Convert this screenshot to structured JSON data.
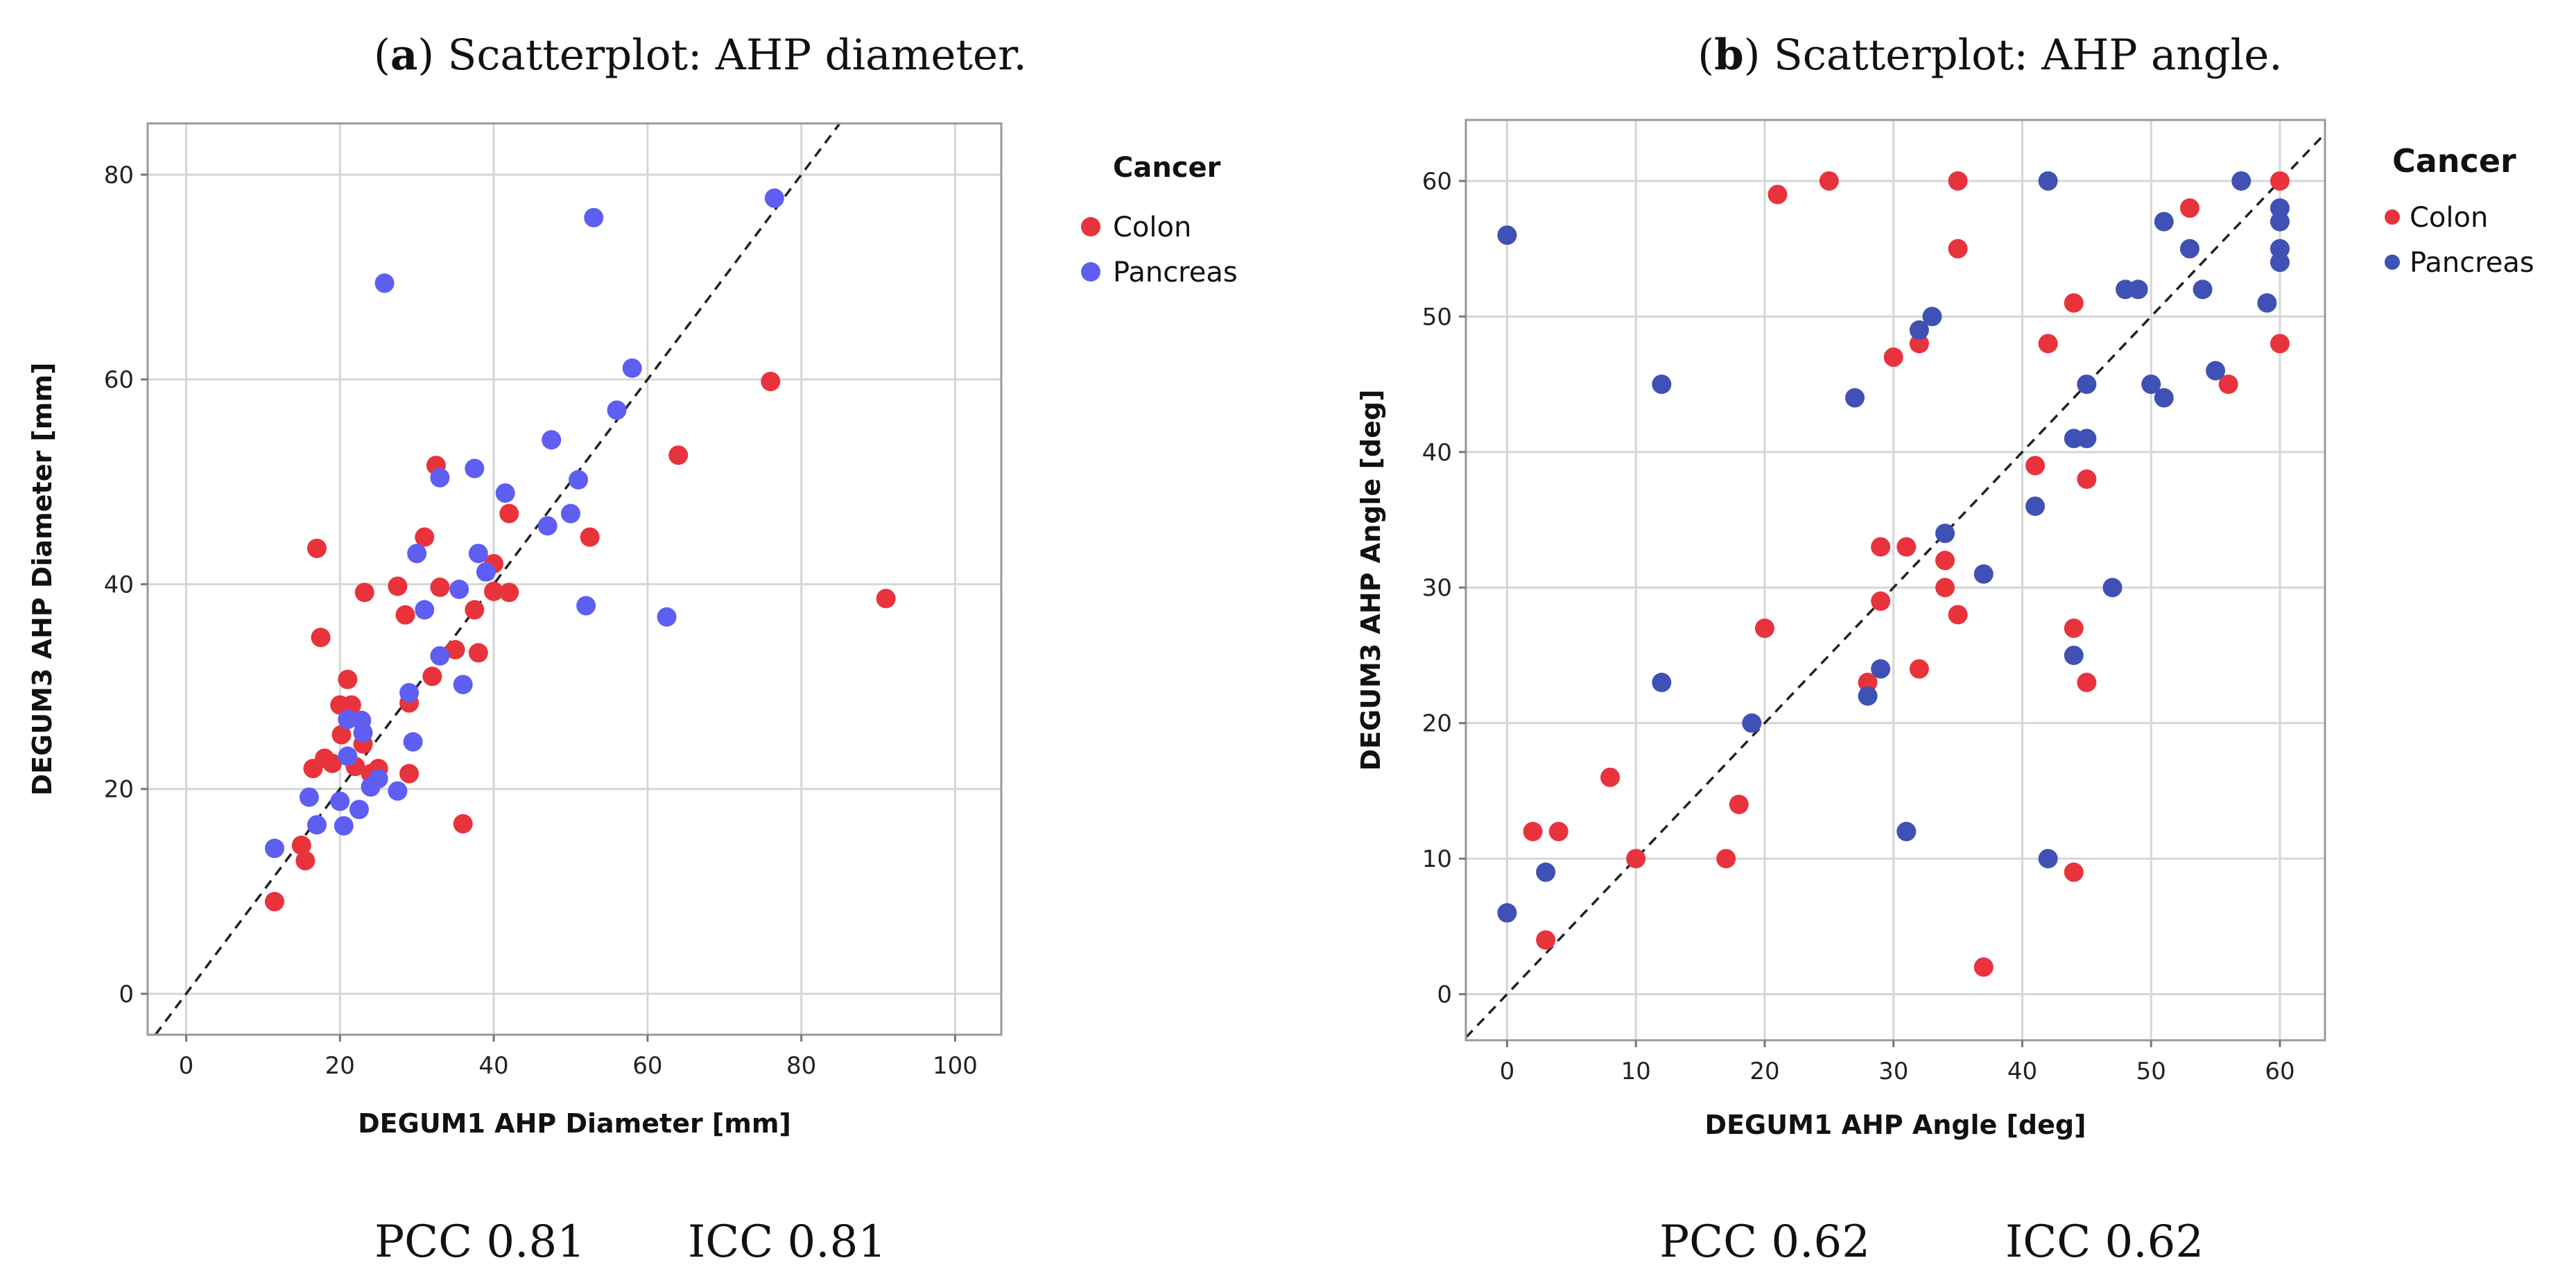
{
  "colors": {
    "colon": "#e8333c",
    "pancreas_a": "#5e5ef2",
    "pancreas_b": "#3f51b5"
  },
  "chart_data": [
    {
      "type": "scatter",
      "caption": {
        "letter": "a",
        "text": ") Scatterplot: AHP diameter.",
        "open": "("
      },
      "stats": {
        "pcc": "PCC 0.81",
        "icc": "ICC 0.81"
      },
      "xlabel": "DEGUM1 AHP Diameter [mm]",
      "ylabel": "DEGUM3 AHP Diameter [mm]",
      "xlim": [
        -5,
        106
      ],
      "ylim": [
        -4,
        85
      ],
      "xticks": [
        0,
        20,
        40,
        60,
        80,
        100
      ],
      "yticks": [
        0,
        20,
        40,
        60,
        80
      ],
      "legend": {
        "title": "Cancer",
        "entries": [
          "Colon",
          "Pancreas"
        ],
        "position": "right"
      },
      "reference_line": "y = x",
      "series": [
        {
          "name": "Colon",
          "points": [
            [
              11.5,
              9
            ],
            [
              15,
              14.5
            ],
            [
              15.5,
              13
            ],
            [
              16.5,
              22
            ],
            [
              17,
              43.5
            ],
            [
              17.5,
              34.8
            ],
            [
              18,
              23
            ],
            [
              19,
              22.5
            ],
            [
              20,
              28.2
            ],
            [
              20.2,
              25.3
            ],
            [
              21,
              30.7
            ],
            [
              21.5,
              28.2
            ],
            [
              22,
              22.2
            ],
            [
              23,
              24.4
            ],
            [
              23.2,
              39.2
            ],
            [
              24,
              21.5
            ],
            [
              25,
              22
            ],
            [
              27.5,
              39.8
            ],
            [
              28.5,
              37
            ],
            [
              29,
              21.5
            ],
            [
              29,
              28.4
            ],
            [
              31,
              44.6
            ],
            [
              32,
              31
            ],
            [
              32.5,
              51.6
            ],
            [
              33,
              39.7
            ],
            [
              35,
              33.6
            ],
            [
              36,
              16.6
            ],
            [
              37.5,
              37.5
            ],
            [
              38,
              33.3
            ],
            [
              40,
              42
            ],
            [
              40,
              39.3
            ],
            [
              42,
              46.9
            ],
            [
              42,
              39.2
            ],
            [
              52.5,
              44.6
            ],
            [
              64,
              52.6
            ],
            [
              76,
              59.8
            ],
            [
              91,
              38.6
            ]
          ]
        },
        {
          "name": "Pancreas",
          "points": [
            [
              11.5,
              14.2
            ],
            [
              16,
              19.2
            ],
            [
              17,
              16.5
            ],
            [
              20,
              18.8
            ],
            [
              20.5,
              16.4
            ],
            [
              21,
              23.2
            ],
            [
              21,
              26.8
            ],
            [
              22.5,
              18
            ],
            [
              22.8,
              26.7
            ],
            [
              23,
              25.5
            ],
            [
              24,
              20.2
            ],
            [
              25,
              21
            ],
            [
              25.8,
              69.4
            ],
            [
              27.5,
              19.8
            ],
            [
              29,
              29.4
            ],
            [
              29.5,
              24.6
            ],
            [
              30,
              43
            ],
            [
              31,
              37.5
            ],
            [
              33,
              33
            ],
            [
              33,
              50.4
            ],
            [
              35.5,
              39.5
            ],
            [
              36,
              30.2
            ],
            [
              37.5,
              51.3
            ],
            [
              38,
              43
            ],
            [
              39,
              41.2
            ],
            [
              41.5,
              48.9
            ],
            [
              47,
              45.7
            ],
            [
              47.5,
              54.1
            ],
            [
              50,
              46.9
            ],
            [
              51,
              50.2
            ],
            [
              52,
              37.9
            ],
            [
              53,
              75.8
            ],
            [
              56,
              57
            ],
            [
              58,
              61.1
            ],
            [
              62.5,
              36.8
            ],
            [
              76.5,
              77.7
            ]
          ]
        }
      ]
    },
    {
      "type": "scatter",
      "caption": {
        "letter": "b",
        "text": ") Scatterplot: AHP angle.",
        "open": "("
      },
      "stats": {
        "pcc": "PCC 0.62",
        "icc": "ICC 0.62"
      },
      "xlabel": "DEGUM1 AHP Angle [deg]",
      "ylabel": "DEGUM3 AHP Angle [deg]",
      "xlim": [
        -3.2,
        63.5
      ],
      "ylim": [
        -3.4,
        64.5
      ],
      "xticks": [
        0,
        10,
        20,
        30,
        40,
        50,
        60
      ],
      "yticks": [
        0,
        10,
        20,
        30,
        40,
        50,
        60
      ],
      "legend": {
        "title": "Cancer",
        "entries": [
          "Colon",
          "Pancreas"
        ],
        "position": "right"
      },
      "reference_line": "y = x",
      "series": [
        {
          "name": "Colon",
          "points": [
            [
              2,
              12
            ],
            [
              3,
              4
            ],
            [
              4,
              12
            ],
            [
              8,
              16
            ],
            [
              10,
              10
            ],
            [
              17,
              10
            ],
            [
              18,
              14
            ],
            [
              20,
              27
            ],
            [
              21,
              59
            ],
            [
              25,
              60
            ],
            [
              28,
              23
            ],
            [
              29,
              33
            ],
            [
              29,
              29
            ],
            [
              30,
              47
            ],
            [
              31,
              33
            ],
            [
              32,
              48
            ],
            [
              32,
              24
            ],
            [
              34,
              32
            ],
            [
              34,
              30
            ],
            [
              35,
              60
            ],
            [
              35,
              55
            ],
            [
              35,
              28
            ],
            [
              37,
              2
            ],
            [
              41,
              39
            ],
            [
              42,
              48
            ],
            [
              44,
              51
            ],
            [
              44,
              27
            ],
            [
              44,
              9
            ],
            [
              45,
              38
            ],
            [
              45,
              23
            ],
            [
              53,
              58
            ],
            [
              56,
              45
            ],
            [
              60,
              60
            ],
            [
              60,
              48
            ]
          ]
        },
        {
          "name": "Pancreas",
          "points": [
            [
              0,
              56
            ],
            [
              0,
              6
            ],
            [
              3,
              9
            ],
            [
              12,
              45
            ],
            [
              12,
              23
            ],
            [
              19,
              20
            ],
            [
              27,
              44
            ],
            [
              28,
              22
            ],
            [
              29,
              24
            ],
            [
              31,
              12
            ],
            [
              32,
              49
            ],
            [
              33,
              50
            ],
            [
              34,
              34
            ],
            [
              37,
              31
            ],
            [
              41,
              36
            ],
            [
              42,
              60
            ],
            [
              42,
              10
            ],
            [
              44,
              41
            ],
            [
              44,
              25
            ],
            [
              45,
              45
            ],
            [
              45,
              41
            ],
            [
              47,
              30
            ],
            [
              48,
              52
            ],
            [
              49,
              52
            ],
            [
              50,
              45
            ],
            [
              51,
              57
            ],
            [
              51,
              44
            ],
            [
              53,
              55
            ],
            [
              54,
              52
            ],
            [
              55,
              46
            ],
            [
              57,
              60
            ],
            [
              59,
              51
            ],
            [
              60,
              58
            ],
            [
              60,
              57
            ],
            [
              60,
              55
            ],
            [
              60,
              54
            ]
          ]
        }
      ]
    }
  ]
}
